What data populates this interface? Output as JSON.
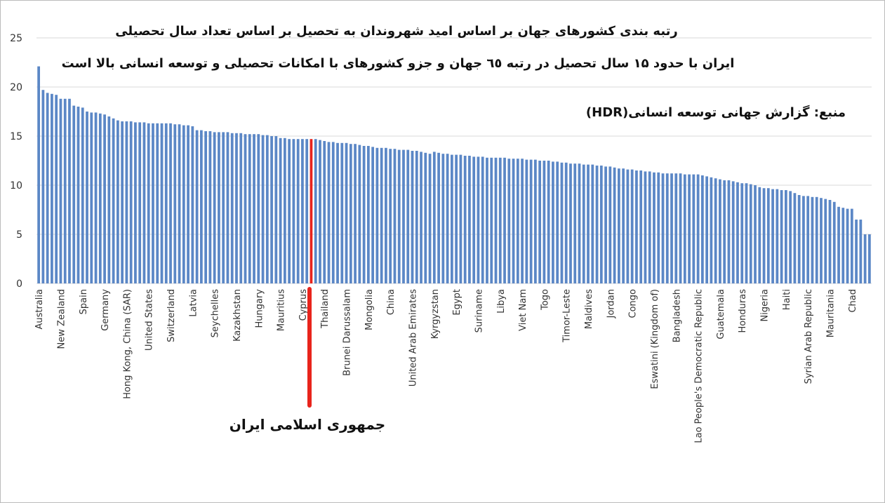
{
  "chart_data": {
    "type": "bar",
    "annotations": [
      "رتبه بندی کشورهای جهان بر اساس امید شهروندان به تحصیل بر اساس تعداد سال تحصیلی",
      "ایران با حدود ۱۵ سال تحصیل در رتبه ٦٥ جهان و جزو کشورهای با امکانات تحصیلی و توسعه انسانی بالا است",
      "منبع: گزارش جهانی توسعه انسانی(HDR)",
      "جمهوری اسلامی ایران"
    ],
    "categories": [
      "Australia",
      null,
      null,
      null,
      null,
      "New Zealand",
      null,
      null,
      null,
      null,
      "Spain",
      null,
      null,
      null,
      null,
      "Germany",
      null,
      null,
      null,
      null,
      "Hong Kong, China (SAR)",
      null,
      null,
      null,
      null,
      "United States",
      null,
      null,
      null,
      null,
      "Switzerland",
      null,
      null,
      null,
      null,
      "Latvia",
      null,
      null,
      null,
      null,
      "Seychelles",
      null,
      null,
      null,
      null,
      "Kazakhstan",
      null,
      null,
      null,
      null,
      "Hungary",
      null,
      null,
      null,
      null,
      "Mauritius",
      null,
      null,
      null,
      null,
      "Cyprus",
      null,
      null,
      null,
      null,
      "Thailand",
      null,
      null,
      null,
      null,
      "Brunei Darussalam",
      null,
      null,
      null,
      null,
      "Mongolia",
      null,
      null,
      null,
      null,
      "China",
      null,
      null,
      null,
      null,
      "United Arab Emirates",
      null,
      null,
      null,
      null,
      "Kyrgyzstan",
      null,
      null,
      null,
      null,
      "Egypt",
      null,
      null,
      null,
      null,
      "Suriname",
      null,
      null,
      null,
      null,
      "Libya",
      null,
      null,
      null,
      null,
      "Viet Nam",
      null,
      null,
      null,
      null,
      "Togo",
      null,
      null,
      null,
      null,
      "Timor-Leste",
      null,
      null,
      null,
      null,
      "Maldives",
      null,
      null,
      null,
      null,
      "Jordan",
      null,
      null,
      null,
      null,
      "Congo",
      null,
      null,
      null,
      null,
      "Eswatini (Kingdom of)",
      null,
      null,
      null,
      null,
      "Bangladesh",
      null,
      null,
      null,
      null,
      "Lao People's Democratic Republic",
      null,
      null,
      null,
      null,
      "Guatemala",
      null,
      null,
      null,
      null,
      "Honduras",
      null,
      null,
      null,
      null,
      "Nigeria",
      null,
      null,
      null,
      null,
      "Haiti",
      null,
      null,
      null,
      null,
      "Syrian Arab Republic",
      null,
      null,
      null,
      null,
      "Mauritania",
      null,
      null,
      null,
      null,
      "Chad",
      null,
      null,
      null,
      null
    ],
    "values": [
      22.1,
      19.7,
      19.4,
      19.3,
      19.2,
      18.8,
      18.8,
      18.8,
      18.1,
      18.0,
      17.9,
      17.5,
      17.4,
      17.4,
      17.3,
      17.2,
      17.0,
      16.8,
      16.6,
      16.5,
      16.5,
      16.5,
      16.4,
      16.4,
      16.4,
      16.3,
      16.3,
      16.3,
      16.3,
      16.3,
      16.3,
      16.2,
      16.2,
      16.1,
      16.1,
      16.0,
      15.6,
      15.6,
      15.5,
      15.5,
      15.4,
      15.4,
      15.4,
      15.4,
      15.3,
      15.3,
      15.3,
      15.2,
      15.2,
      15.2,
      15.2,
      15.1,
      15.1,
      15.0,
      15.0,
      14.8,
      14.8,
      14.7,
      14.7,
      14.7,
      14.7,
      14.7,
      14.7,
      14.7,
      14.6,
      14.5,
      14.4,
      14.4,
      14.3,
      14.3,
      14.3,
      14.2,
      14.2,
      14.1,
      14.0,
      14.0,
      13.9,
      13.8,
      13.8,
      13.8,
      13.7,
      13.7,
      13.6,
      13.6,
      13.6,
      13.5,
      13.5,
      13.4,
      13.3,
      13.2,
      13.4,
      13.3,
      13.2,
      13.2,
      13.1,
      13.1,
      13.1,
      13.0,
      13.0,
      12.9,
      12.9,
      12.9,
      12.8,
      12.8,
      12.8,
      12.8,
      12.8,
      12.7,
      12.7,
      12.7,
      12.7,
      12.6,
      12.6,
      12.6,
      12.5,
      12.5,
      12.5,
      12.4,
      12.4,
      12.3,
      12.3,
      12.2,
      12.2,
      12.2,
      12.1,
      12.1,
      12.1,
      12.0,
      12.0,
      11.9,
      11.9,
      11.8,
      11.7,
      11.7,
      11.6,
      11.6,
      11.5,
      11.5,
      11.4,
      11.4,
      11.3,
      11.3,
      11.2,
      11.2,
      11.2,
      11.2,
      11.2,
      11.1,
      11.1,
      11.1,
      11.1,
      11.0,
      10.9,
      10.8,
      10.7,
      10.6,
      10.5,
      10.5,
      10.4,
      10.3,
      10.2,
      10.2,
      10.1,
      10.0,
      9.8,
      9.7,
      9.7,
      9.6,
      9.6,
      9.5,
      9.5,
      9.4,
      9.2,
      9.0,
      8.9,
      8.9,
      8.8,
      8.8,
      8.7,
      8.6,
      8.5,
      8.3,
      7.8,
      7.7,
      7.6,
      7.6,
      6.5,
      6.5,
      5.0,
      5.0
    ],
    "color": "#5b87c6",
    "highlight": {
      "index": 62,
      "color": "#e8241c"
    },
    "ylim": [
      0,
      25
    ],
    "yticks": [
      0,
      5,
      10,
      15,
      20,
      25
    ],
    "grid": true
  }
}
